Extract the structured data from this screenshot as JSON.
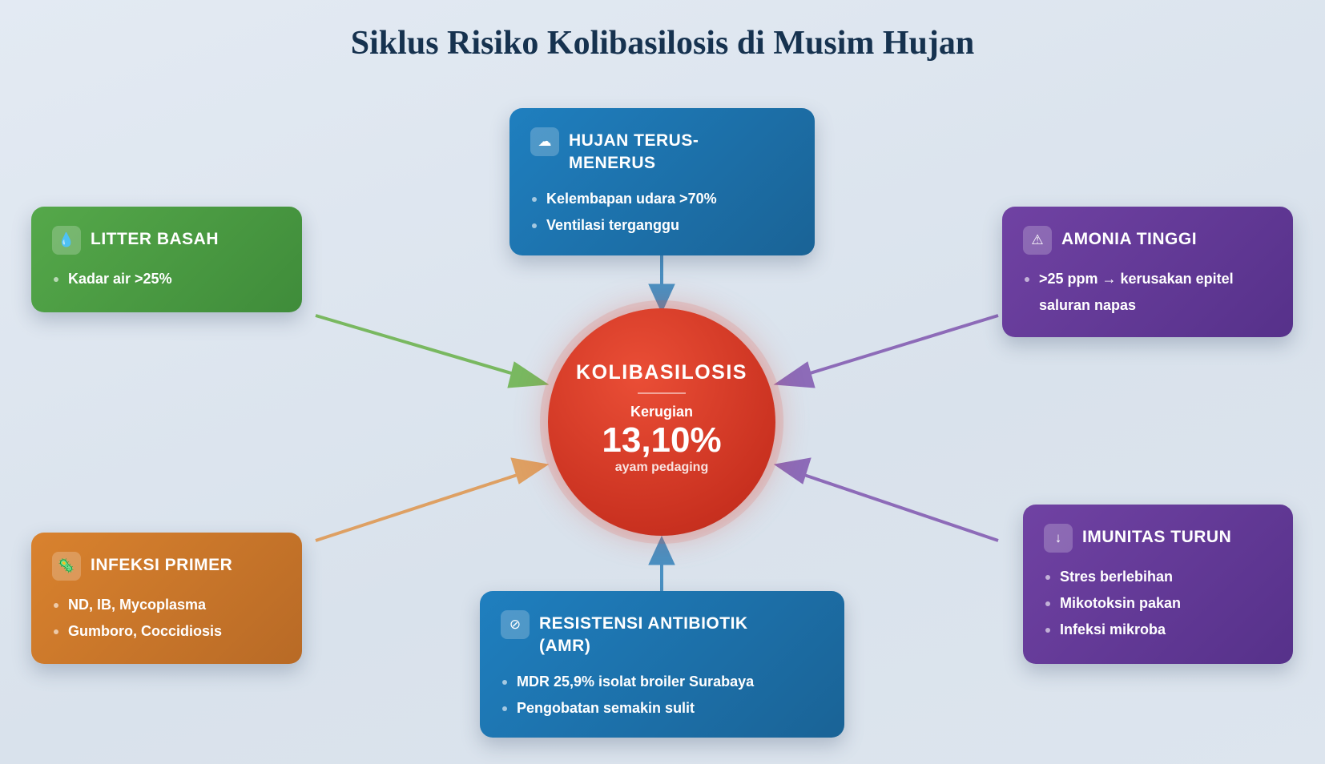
{
  "title": "Siklus Risiko Kolibasilosis di Musim Hujan",
  "center": {
    "title": "KOLIBASILOSIS",
    "label": "Kerugian",
    "value": "13,10%",
    "sub": "ayam pedaging"
  },
  "boxes": {
    "hujan": {
      "icon": "cloud-icon",
      "glyph": "☁",
      "title": "HUJAN TERUS-MENERUS",
      "items": [
        "Kelembapan udara >70%",
        "Ventilasi terganggu"
      ],
      "color": "#1f7fbf"
    },
    "litter": {
      "icon": "water-drop-icon",
      "glyph": "💧",
      "title": "LITTER BASAH",
      "items": [
        "Kadar air >25%"
      ],
      "color": "#4e9e44"
    },
    "amonia": {
      "icon": "warning-icon",
      "glyph": "⚠",
      "title": "AMONIA TINGGI",
      "items": [
        ">25 ppm → kerusakan epitel saluran napas"
      ],
      "color": "#6a3d9e"
    },
    "infeksi": {
      "icon": "microbe-icon",
      "glyph": "🦠",
      "title": "INFEKSI PRIMER",
      "items": [
        "ND, IB, Mycoplasma",
        "Gumboro, Coccidiosis"
      ],
      "color": "#d07c2c"
    },
    "resistensi": {
      "icon": "prohibited-icon",
      "glyph": "⊘",
      "title": "RESISTENSI ANTIBIOTIK (AMR)",
      "items": [
        "MDR 25,9% isolat broiler Surabaya",
        "Pengobatan semakin sulit"
      ],
      "color": "#1f7fbf"
    },
    "imunitas": {
      "icon": "down-arrow-icon",
      "glyph": "↓",
      "title": "IMUNITAS TURUN",
      "items": [
        "Stres berlebihan",
        "Mikotoksin pakan",
        "Infeksi mikroba"
      ],
      "color": "#6a3d9e"
    }
  }
}
